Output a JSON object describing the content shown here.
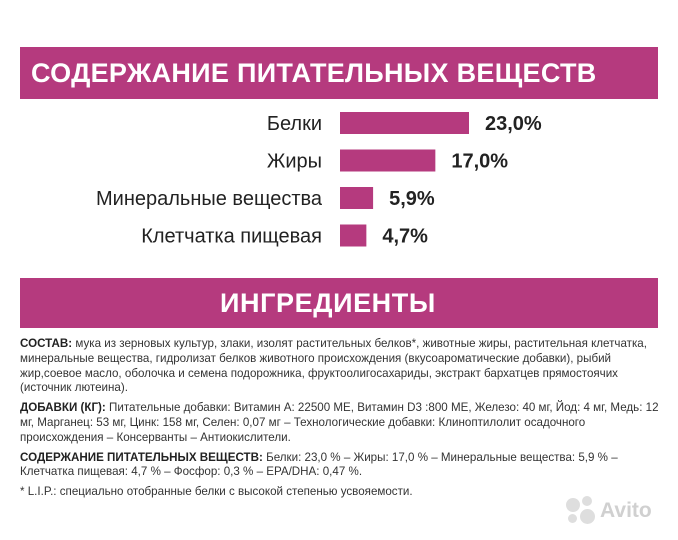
{
  "header": {
    "title": "СОДЕРЖАНИЕ ПИТАТЕЛЬНЫХ ВЕЩЕСТВ"
  },
  "chart_data": {
    "type": "bar",
    "orientation": "horizontal",
    "categories": [
      "Белки",
      "Жиры",
      "Минеральные вещества",
      "Клетчатка пищевая"
    ],
    "values": [
      23.0,
      17.0,
      5.9,
      4.7
    ],
    "value_labels": [
      "23,0%",
      "17,0%",
      "5,9%",
      "4,7%"
    ],
    "bar_color": "#b53a7e",
    "grid": false,
    "legend": "none"
  },
  "ingredients": {
    "title": "ИНГРЕДИЕНТЫ",
    "sostav_label": "СОСТАВ:",
    "sostav_text": "мука из зерновых культур, злаки, изолят растительных белков*, животные жиры, растительная клетчатка, минеральные вещества, гидролизат белков животного происхождения (вкусоароматические добавки), рыбий жир,соевое масло, оболочка и семена подорожника, фруктоолигосахариды, экстракт бархатцев прямостоячих (источник лютеина).",
    "additives_label": "ДОБАВКИ (КГ):",
    "additives_text": "Питательные добавки: Витамин А: 22500 МЕ, Витамин D3 :800 МЕ, Железо: 40 мг, Йод: 4 мг, Медь: 12 мг, Марганец: 53 мг, Цинк: 158 мг, Селен: 0,07 мг – Технологические добавки: Клиноптилолит осадочного происхождения – Консерванты – Антиокислители.",
    "nutrients_label": "СОДЕРЖАНИЕ ПИТАТЕЛЬНЫХ ВЕЩЕСТВ:",
    "nutrients_text": "Белки: 23,0 % – Жиры: 17,0 % – Минеральные вещества: 5,9 % – Клетчатка пищевая: 4,7 % – Фосфор: 0,3 % – EPA/DHA: 0,47 %.",
    "footnote": "* L.I.P.: специально отобранные белки с высокой степенью усвояемости."
  },
  "watermark": {
    "text": "Avito"
  },
  "colors": {
    "accent": "#b53a7e",
    "text": "#222222"
  }
}
